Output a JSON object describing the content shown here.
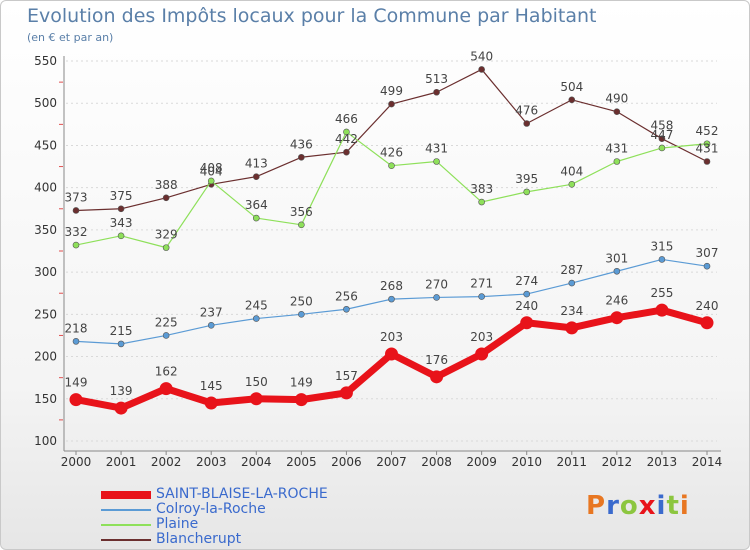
{
  "chart_data": {
    "type": "line",
    "title": "Evolution des Impôts locaux pour la Commune par Habitant",
    "subtitle": "(en € et par an)",
    "x": [
      "2000",
      "2001",
      "2002",
      "2003",
      "2004",
      "2005",
      "2006",
      "2007",
      "2008",
      "2009",
      "2010",
      "2011",
      "2012",
      "2013",
      "2014"
    ],
    "ylim": [
      100,
      550
    ],
    "yticks": [
      "100",
      "150",
      "200",
      "250",
      "300",
      "350",
      "400",
      "450",
      "500",
      "550"
    ],
    "series": [
      {
        "name": "SAINT-BLAISE-LA-ROCHE",
        "color": "#e8131a",
        "values": [
          149,
          139,
          162,
          145,
          150,
          149,
          157,
          203,
          176,
          203,
          240,
          234,
          246,
          255,
          240
        ]
      },
      {
        "name": "Colroy-la-Roche",
        "color": "#5b9bd5",
        "values": [
          218,
          215,
          225,
          237,
          245,
          250,
          256,
          268,
          270,
          271,
          274,
          287,
          301,
          315,
          307
        ]
      },
      {
        "name": "Plaine",
        "color": "#8ee05a",
        "values": [
          332,
          343,
          329,
          408,
          364,
          356,
          466,
          426,
          431,
          383,
          395,
          404,
          431,
          447,
          452
        ]
      },
      {
        "name": "Blancherupt",
        "color": "#6b2f2f",
        "values": [
          373,
          375,
          388,
          404,
          413,
          436,
          442,
          499,
          513,
          540,
          476,
          504,
          490,
          458,
          431
        ]
      }
    ]
  },
  "logo": {
    "text": "Proxiti"
  }
}
